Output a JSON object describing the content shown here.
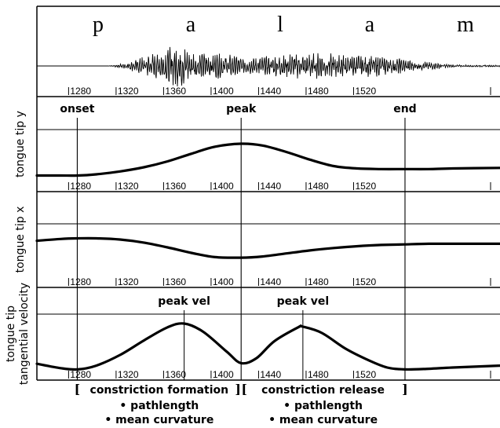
{
  "chart_data": {
    "type": "line",
    "title": "",
    "xlabel": "",
    "xlim": [
      1250,
      1640
    ],
    "segments": [
      "p",
      "a",
      "l",
      "a",
      "m"
    ],
    "x_ticks": [
      1280,
      1320,
      1360,
      1400,
      1440,
      1480,
      1520
    ],
    "events": [
      {
        "label": "onset",
        "x": 1284
      },
      {
        "label": "peak",
        "x": 1422
      },
      {
        "label": "end",
        "x": 1560
      }
    ],
    "panels": [
      {
        "ylabel": "",
        "kind": "waveform",
        "envelope": {
          "x": [
            1250,
            1310,
            1325,
            1345,
            1360,
            1370,
            1380,
            1395,
            1410,
            1425,
            1440,
            1460,
            1480,
            1500,
            1520,
            1540,
            1555,
            1570,
            1600,
            1640
          ],
          "amp": [
            0,
            0,
            0.12,
            0.45,
            0.65,
            0.9,
            0.6,
            0.5,
            0.45,
            0.3,
            0.35,
            0.45,
            0.5,
            0.48,
            0.45,
            0.4,
            0.3,
            0.2,
            0.05,
            0.03
          ]
        }
      },
      {
        "ylabel": "tongue tip y",
        "kind": "line",
        "ylim": [
          0,
          1
        ],
        "series": [
          {
            "x": [
              1250,
              1270,
              1284,
              1300,
              1320,
              1340,
              1360,
              1380,
              1400,
              1422,
              1440,
              1460,
              1480,
              1500,
              1520,
              1540,
              1560,
              1580,
              1600,
              1640
            ],
            "values": [
              0.22,
              0.22,
              0.22,
              0.24,
              0.29,
              0.36,
              0.46,
              0.59,
              0.71,
              0.76,
              0.73,
              0.62,
              0.49,
              0.38,
              0.34,
              0.33,
              0.33,
              0.33,
              0.34,
              0.35
            ]
          }
        ]
      },
      {
        "ylabel": "tongue tip x",
        "kind": "line",
        "ylim": [
          0,
          1
        ],
        "series": [
          {
            "x": [
              1250,
              1270,
              1284,
              1300,
              1320,
              1340,
              1360,
              1380,
              1400,
              1422,
              1440,
              1460,
              1480,
              1500,
              1520,
              1540,
              1560,
              1580,
              1600,
              1640
            ],
            "values": [
              0.72,
              0.75,
              0.76,
              0.76,
              0.74,
              0.69,
              0.61,
              0.52,
              0.45,
              0.44,
              0.46,
              0.51,
              0.56,
              0.6,
              0.63,
              0.65,
              0.66,
              0.67,
              0.67,
              0.67
            ]
          }
        ]
      },
      {
        "ylabel": "tongue tip tangential velocity",
        "kind": "line",
        "ylim": [
          0,
          1
        ],
        "series": [
          {
            "x": [
              1250,
              1270,
              1284,
              1300,
              1320,
              1340,
              1360,
              1374,
              1390,
              1410,
              1422,
              1435,
              1450,
              1470,
              1474,
              1490,
              1510,
              1530,
              1545,
              1560,
              1580,
              1600,
              1640
            ],
            "values": [
              0.21,
              0.14,
              0.12,
              0.18,
              0.35,
              0.58,
              0.79,
              0.85,
              0.72,
              0.4,
              0.22,
              0.3,
              0.57,
              0.79,
              0.8,
              0.7,
              0.45,
              0.26,
              0.15,
              0.12,
              0.13,
              0.15,
              0.18
            ]
          }
        ],
        "annotations": [
          {
            "label": "peak vel",
            "x": 1374
          },
          {
            "label": "peak vel",
            "x": 1474
          }
        ]
      }
    ],
    "intervals": [
      {
        "title": "constriction formation",
        "items": [
          "• pathlength",
          "• mean curvature"
        ],
        "start": 1284,
        "end": 1422,
        "open": "[",
        "close": "]"
      },
      {
        "title": "constriction release",
        "items": [
          "• pathlength",
          "• mean curvature"
        ],
        "start": 1422,
        "end": 1560,
        "open": "[",
        "close": "]"
      }
    ]
  }
}
